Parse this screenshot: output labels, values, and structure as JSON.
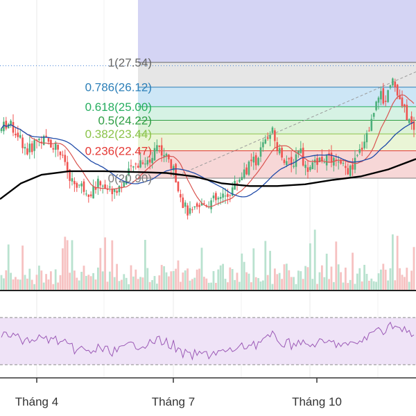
{
  "chart_data": {
    "type": "candlestick",
    "price_axis": {
      "ylim": [
        18.5,
        30.0
      ]
    },
    "fibonacci": {
      "levels": [
        {
          "label": "1(27.54)",
          "price": 27.54,
          "color": "#666666",
          "band": "#e6e6e6"
        },
        {
          "label": "0.786(26.12)",
          "price": 26.12,
          "color": "#2c7fb8",
          "band": "#cde6f6"
        },
        {
          "label": "0.618(25.00)",
          "price": 25.0,
          "color": "#27ae60",
          "band": "#d6f2e4"
        },
        {
          "label": "0.5(24.22)",
          "price": 24.22,
          "color": "#2e9e44",
          "band": "#ddf2d8"
        },
        {
          "label": "0.382(23.44)",
          "price": 23.44,
          "color": "#8bc34a",
          "band": "#eaf5d6"
        },
        {
          "label": "0.236(22.47)",
          "price": 22.47,
          "color": "#e53935",
          "band": "#f7d7d7"
        },
        {
          "label": "0(20.90)",
          "price": 20.9,
          "color": "#7a7a7a",
          "band": null
        }
      ],
      "top_band_color": "#d4d4f4",
      "dotted_level_price": 27.35
    },
    "x_axis": {
      "labels": [
        "Tháng 4",
        "Tháng 7",
        "Tháng 10"
      ]
    },
    "rsi": {
      "upper": 70,
      "lower": 30
    },
    "colors": {
      "up": "#4caf7a",
      "down": "#ef5350",
      "ma_blue": "#1f4aa8",
      "ma_black": "#000000",
      "ma_red": "#d9534f",
      "volume_up": "#b9e2cf",
      "volume_down": "#f6c1c1",
      "rsi_line": "#9b59b6",
      "rsi_band": "#efe3f7"
    }
  }
}
